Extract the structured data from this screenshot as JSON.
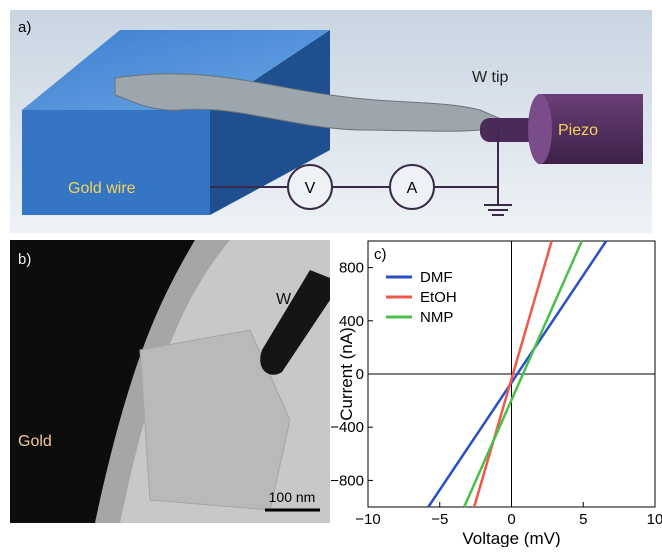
{
  "panel_a": {
    "label": "a)",
    "w_tip": "W tip",
    "piezo": "Piezo",
    "gold_wire": "Gold wire",
    "voltmeter": "V",
    "ammeter": "A"
  },
  "panel_b": {
    "label": "b)",
    "w": "W",
    "gold": "Gold",
    "scale_bar": "100 nm"
  },
  "chart_data": {
    "type": "line",
    "panel_label": "c)",
    "x_label": "Voltage (mV)",
    "y_label": "Current (nA)",
    "xlim": [
      -10,
      10
    ],
    "ylim": [
      -1000,
      1000
    ],
    "xticks": [
      {
        "value": -10,
        "label": "−10"
      },
      {
        "value": -5,
        "label": "−5"
      },
      0,
      5,
      10
    ],
    "yticks": [
      {
        "value": -800,
        "label": "−800"
      },
      {
        "value": -400,
        "label": "−400"
      },
      0,
      400,
      800
    ],
    "legend": "upper left",
    "series": [
      {
        "name": "DMF",
        "color": "#2b4fc8",
        "x": [
          -5.8,
          6.6
        ],
        "values": [
          -1000,
          1000
        ]
      },
      {
        "name": "EtOH",
        "color": "#f0584a",
        "x": [
          -2.6,
          2.8
        ],
        "values": [
          -1000,
          1000
        ]
      },
      {
        "name": "NMP",
        "color": "#4bbf4b",
        "x": [
          -3.3,
          4.9
        ],
        "values": [
          -1000,
          1000
        ]
      }
    ]
  }
}
